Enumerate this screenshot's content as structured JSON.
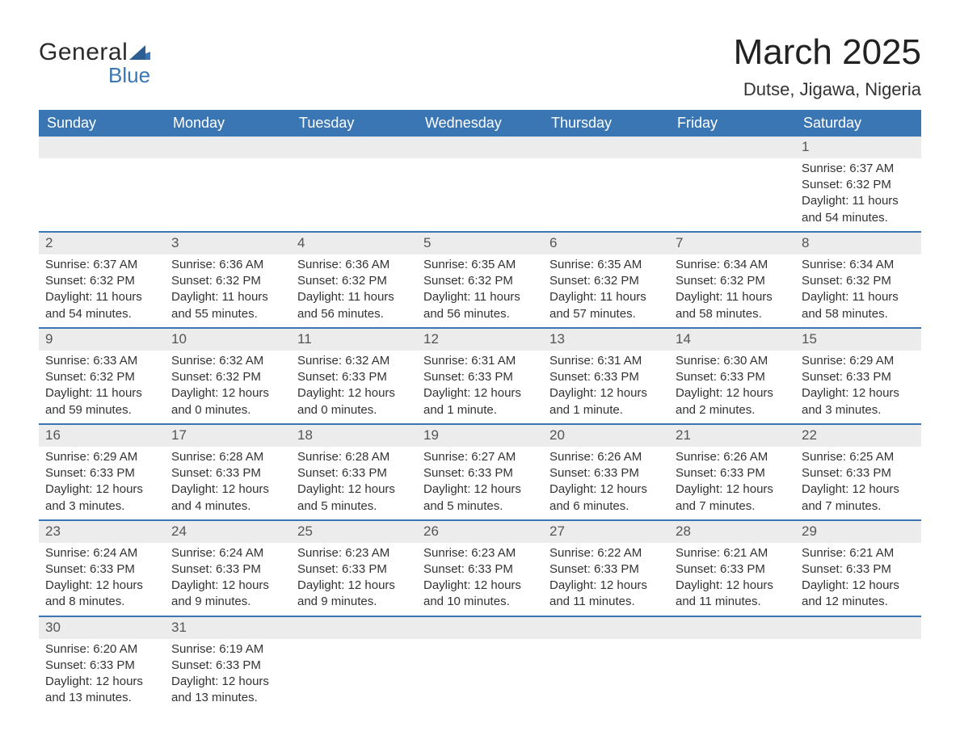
{
  "logo": {
    "word1": "General",
    "word2": "Blue",
    "flag_color": "#3a76b4"
  },
  "title": "March 2025",
  "location": "Dutse, Jigawa, Nigeria",
  "colors": {
    "header_bg": "#3a76b4",
    "header_text": "#ffffff",
    "daynum_bg": "#ececec",
    "border": "#3a76b4",
    "body_text": "#333333"
  },
  "day_headers": [
    "Sunday",
    "Monday",
    "Tuesday",
    "Wednesday",
    "Thursday",
    "Friday",
    "Saturday"
  ],
  "weeks": [
    [
      null,
      null,
      null,
      null,
      null,
      null,
      {
        "n": "1",
        "sunrise": "Sunrise: 6:37 AM",
        "sunset": "Sunset: 6:32 PM",
        "dl1": "Daylight: 11 hours",
        "dl2": "and 54 minutes."
      }
    ],
    [
      {
        "n": "2",
        "sunrise": "Sunrise: 6:37 AM",
        "sunset": "Sunset: 6:32 PM",
        "dl1": "Daylight: 11 hours",
        "dl2": "and 54 minutes."
      },
      {
        "n": "3",
        "sunrise": "Sunrise: 6:36 AM",
        "sunset": "Sunset: 6:32 PM",
        "dl1": "Daylight: 11 hours",
        "dl2": "and 55 minutes."
      },
      {
        "n": "4",
        "sunrise": "Sunrise: 6:36 AM",
        "sunset": "Sunset: 6:32 PM",
        "dl1": "Daylight: 11 hours",
        "dl2": "and 56 minutes."
      },
      {
        "n": "5",
        "sunrise": "Sunrise: 6:35 AM",
        "sunset": "Sunset: 6:32 PM",
        "dl1": "Daylight: 11 hours",
        "dl2": "and 56 minutes."
      },
      {
        "n": "6",
        "sunrise": "Sunrise: 6:35 AM",
        "sunset": "Sunset: 6:32 PM",
        "dl1": "Daylight: 11 hours",
        "dl2": "and 57 minutes."
      },
      {
        "n": "7",
        "sunrise": "Sunrise: 6:34 AM",
        "sunset": "Sunset: 6:32 PM",
        "dl1": "Daylight: 11 hours",
        "dl2": "and 58 minutes."
      },
      {
        "n": "8",
        "sunrise": "Sunrise: 6:34 AM",
        "sunset": "Sunset: 6:32 PM",
        "dl1": "Daylight: 11 hours",
        "dl2": "and 58 minutes."
      }
    ],
    [
      {
        "n": "9",
        "sunrise": "Sunrise: 6:33 AM",
        "sunset": "Sunset: 6:32 PM",
        "dl1": "Daylight: 11 hours",
        "dl2": "and 59 minutes."
      },
      {
        "n": "10",
        "sunrise": "Sunrise: 6:32 AM",
        "sunset": "Sunset: 6:32 PM",
        "dl1": "Daylight: 12 hours",
        "dl2": "and 0 minutes."
      },
      {
        "n": "11",
        "sunrise": "Sunrise: 6:32 AM",
        "sunset": "Sunset: 6:33 PM",
        "dl1": "Daylight: 12 hours",
        "dl2": "and 0 minutes."
      },
      {
        "n": "12",
        "sunrise": "Sunrise: 6:31 AM",
        "sunset": "Sunset: 6:33 PM",
        "dl1": "Daylight: 12 hours",
        "dl2": "and 1 minute."
      },
      {
        "n": "13",
        "sunrise": "Sunrise: 6:31 AM",
        "sunset": "Sunset: 6:33 PM",
        "dl1": "Daylight: 12 hours",
        "dl2": "and 1 minute."
      },
      {
        "n": "14",
        "sunrise": "Sunrise: 6:30 AM",
        "sunset": "Sunset: 6:33 PM",
        "dl1": "Daylight: 12 hours",
        "dl2": "and 2 minutes."
      },
      {
        "n": "15",
        "sunrise": "Sunrise: 6:29 AM",
        "sunset": "Sunset: 6:33 PM",
        "dl1": "Daylight: 12 hours",
        "dl2": "and 3 minutes."
      }
    ],
    [
      {
        "n": "16",
        "sunrise": "Sunrise: 6:29 AM",
        "sunset": "Sunset: 6:33 PM",
        "dl1": "Daylight: 12 hours",
        "dl2": "and 3 minutes."
      },
      {
        "n": "17",
        "sunrise": "Sunrise: 6:28 AM",
        "sunset": "Sunset: 6:33 PM",
        "dl1": "Daylight: 12 hours",
        "dl2": "and 4 minutes."
      },
      {
        "n": "18",
        "sunrise": "Sunrise: 6:28 AM",
        "sunset": "Sunset: 6:33 PM",
        "dl1": "Daylight: 12 hours",
        "dl2": "and 5 minutes."
      },
      {
        "n": "19",
        "sunrise": "Sunrise: 6:27 AM",
        "sunset": "Sunset: 6:33 PM",
        "dl1": "Daylight: 12 hours",
        "dl2": "and 5 minutes."
      },
      {
        "n": "20",
        "sunrise": "Sunrise: 6:26 AM",
        "sunset": "Sunset: 6:33 PM",
        "dl1": "Daylight: 12 hours",
        "dl2": "and 6 minutes."
      },
      {
        "n": "21",
        "sunrise": "Sunrise: 6:26 AM",
        "sunset": "Sunset: 6:33 PM",
        "dl1": "Daylight: 12 hours",
        "dl2": "and 7 minutes."
      },
      {
        "n": "22",
        "sunrise": "Sunrise: 6:25 AM",
        "sunset": "Sunset: 6:33 PM",
        "dl1": "Daylight: 12 hours",
        "dl2": "and 7 minutes."
      }
    ],
    [
      {
        "n": "23",
        "sunrise": "Sunrise: 6:24 AM",
        "sunset": "Sunset: 6:33 PM",
        "dl1": "Daylight: 12 hours",
        "dl2": "and 8 minutes."
      },
      {
        "n": "24",
        "sunrise": "Sunrise: 6:24 AM",
        "sunset": "Sunset: 6:33 PM",
        "dl1": "Daylight: 12 hours",
        "dl2": "and 9 minutes."
      },
      {
        "n": "25",
        "sunrise": "Sunrise: 6:23 AM",
        "sunset": "Sunset: 6:33 PM",
        "dl1": "Daylight: 12 hours",
        "dl2": "and 9 minutes."
      },
      {
        "n": "26",
        "sunrise": "Sunrise: 6:23 AM",
        "sunset": "Sunset: 6:33 PM",
        "dl1": "Daylight: 12 hours",
        "dl2": "and 10 minutes."
      },
      {
        "n": "27",
        "sunrise": "Sunrise: 6:22 AM",
        "sunset": "Sunset: 6:33 PM",
        "dl1": "Daylight: 12 hours",
        "dl2": "and 11 minutes."
      },
      {
        "n": "28",
        "sunrise": "Sunrise: 6:21 AM",
        "sunset": "Sunset: 6:33 PM",
        "dl1": "Daylight: 12 hours",
        "dl2": "and 11 minutes."
      },
      {
        "n": "29",
        "sunrise": "Sunrise: 6:21 AM",
        "sunset": "Sunset: 6:33 PM",
        "dl1": "Daylight: 12 hours",
        "dl2": "and 12 minutes."
      }
    ],
    [
      {
        "n": "30",
        "sunrise": "Sunrise: 6:20 AM",
        "sunset": "Sunset: 6:33 PM",
        "dl1": "Daylight: 12 hours",
        "dl2": "and 13 minutes."
      },
      {
        "n": "31",
        "sunrise": "Sunrise: 6:19 AM",
        "sunset": "Sunset: 6:33 PM",
        "dl1": "Daylight: 12 hours",
        "dl2": "and 13 minutes."
      },
      null,
      null,
      null,
      null,
      null
    ]
  ]
}
